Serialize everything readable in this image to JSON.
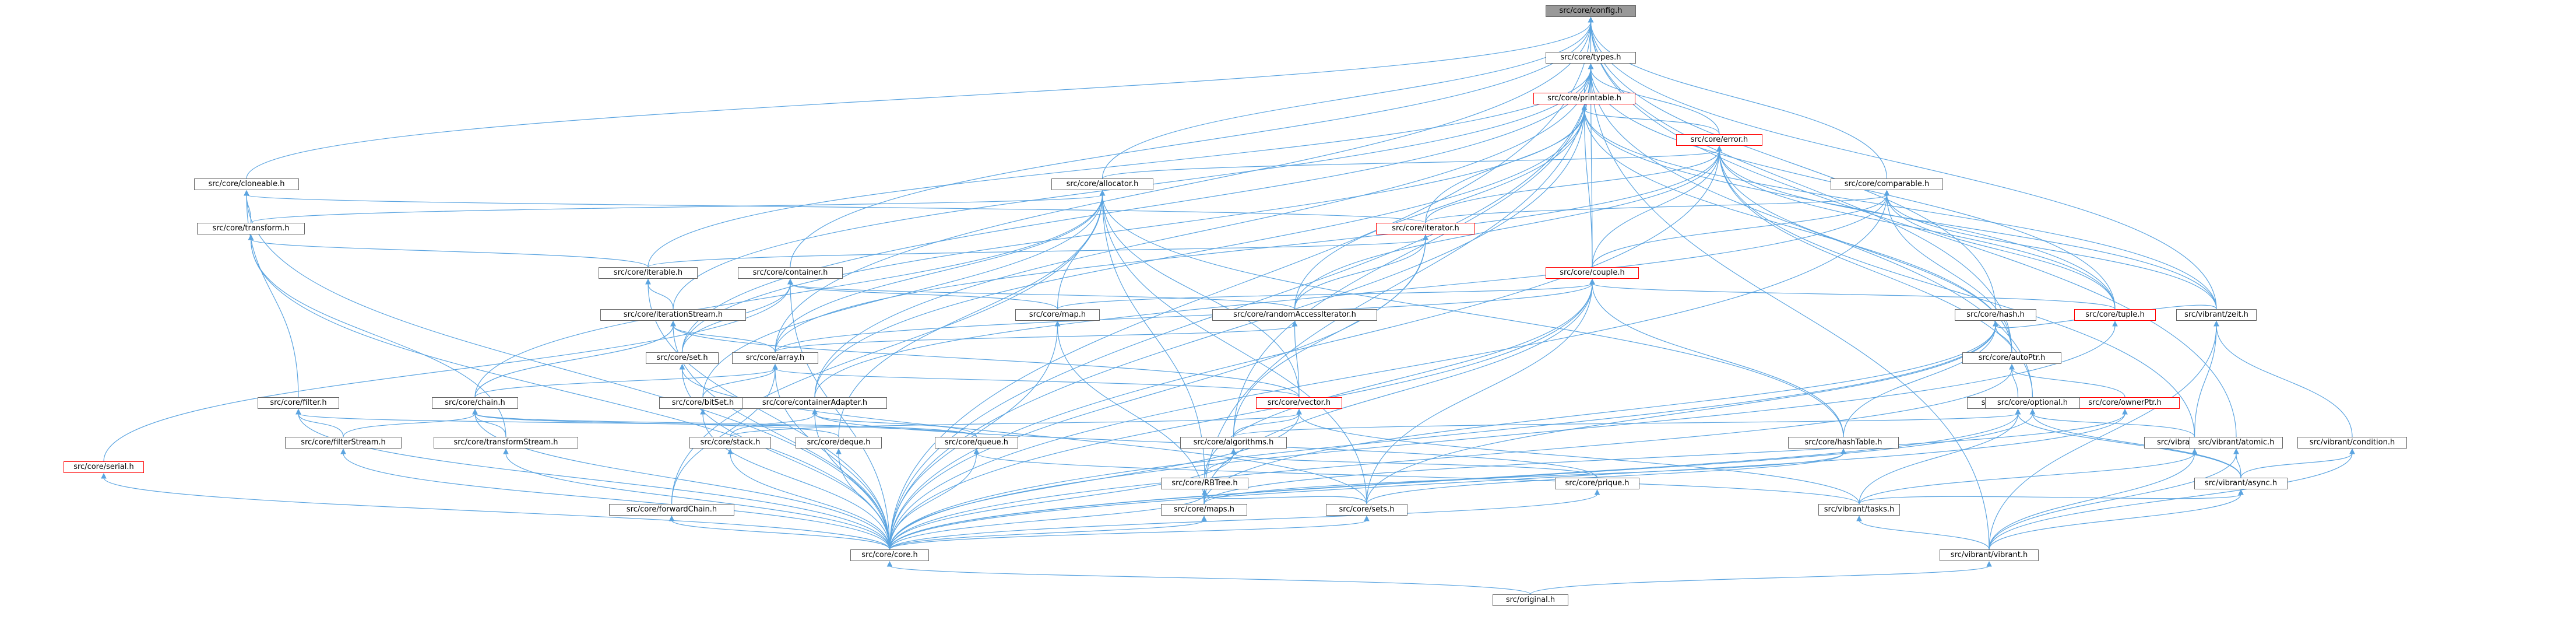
{
  "nodes": {
    "config": "src/core/config.h",
    "types": "src/core/types.h",
    "printable": "src/core/printable.h",
    "error": "src/core/error.h",
    "cloneable": "src/core/cloneable.h",
    "allocator": "src/core/allocator.h",
    "comparable": "src/core/comparable.h",
    "transform": "src/core/transform.h",
    "iterator": "src/core/iterator.h",
    "iterable": "src/core/iterable.h",
    "container": "src/core/container.h",
    "couple": "src/core/couple.h",
    "map": "src/core/map.h",
    "randomAccessIterator": "src/core/randomAccessIterator.h",
    "hash": "src/core/hash.h",
    "tuple": "src/core/tuple.h",
    "zeit": "src/vibrant/zeit.h",
    "iterationStream": "src/core/iterationStream.h",
    "set": "src/core/set.h",
    "array": "src/core/array.h",
    "autoPtr": "src/core/autoPtr.h",
    "filter": "src/core/filter.h",
    "chain": "src/core/chain.h",
    "bitSet": "src/core/bitSet.h",
    "containerAdapter": "src/core/containerAdapter.h",
    "vector": "src/core/vector.h",
    "refCntPtr": "src/core/refCntPtr.h",
    "ownerPtr": "src/core/ownerPtr.h",
    "optional": "src/core/optional.h",
    "serial": "src/core/serial.h",
    "filterStream": "src/core/filterStream.h",
    "transformStream": "src/core/transformStream.h",
    "stack": "src/core/stack.h",
    "deque": "src/core/deque.h",
    "queue": "src/core/queue.h",
    "algorithms": "src/core/algorithms.h",
    "hashTable": "src/core/hashTable.h",
    "thread": "src/vibrant/thread.h",
    "atomic": "src/vibrant/atomic.h",
    "condition": "src/vibrant/condition.h",
    "RBTree": "src/core/RBTree.h",
    "prique": "src/core/prique.h",
    "async": "src/vibrant/async.h",
    "forwardChain": "src/core/forwardChain.h",
    "maps": "src/core/maps.h",
    "sets": "src/core/sets.h",
    "tasks": "src/vibrant/tasks.h",
    "core": "src/core/core.h",
    "vibrant": "src/vibrant/vibrant.h",
    "original": "src/original.h"
  },
  "highlighted_nodes": [
    "printable",
    "error",
    "iterator",
    "couple",
    "tuple",
    "vector",
    "ownerPtr",
    "serial"
  ],
  "root_node": "config",
  "edges": [
    [
      "config",
      "types"
    ],
    [
      "config",
      "cloneable"
    ],
    [
      "config",
      "allocator"
    ],
    [
      "config",
      "comparable"
    ],
    [
      "config",
      "container"
    ],
    [
      "config",
      "hash"
    ],
    [
      "config",
      "array"
    ],
    [
      "config",
      "autoPtr"
    ],
    [
      "config",
      "zeit"
    ],
    [
      "config",
      "atomic"
    ],
    [
      "config",
      "core"
    ],
    [
      "types",
      "printable"
    ],
    [
      "types",
      "error"
    ],
    [
      "types",
      "iterationStream"
    ],
    [
      "types",
      "couple"
    ],
    [
      "types",
      "iterable"
    ],
    [
      "types",
      "containerAdapter"
    ],
    [
      "types",
      "algorithms"
    ],
    [
      "types",
      "optional"
    ],
    [
      "types",
      "tuple"
    ],
    [
      "types",
      "vibrant"
    ],
    [
      "types",
      "core"
    ],
    [
      "types",
      "set"
    ],
    [
      "types",
      "maps"
    ],
    [
      "printable",
      "error"
    ],
    [
      "printable",
      "iterator"
    ],
    [
      "printable",
      "couple"
    ],
    [
      "printable",
      "randomAccessIterator"
    ],
    [
      "printable",
      "containerAdapter"
    ],
    [
      "printable",
      "autoPtr"
    ],
    [
      "printable",
      "tuple"
    ],
    [
      "printable",
      "zeit"
    ],
    [
      "printable",
      "core"
    ],
    [
      "printable",
      "set"
    ],
    [
      "error",
      "allocator"
    ],
    [
      "error",
      "iterator"
    ],
    [
      "error",
      "couple"
    ],
    [
      "error",
      "randomAccessIterator"
    ],
    [
      "error",
      "zeit"
    ],
    [
      "error",
      "optional"
    ],
    [
      "error",
      "thread"
    ],
    [
      "error",
      "autoPtr"
    ],
    [
      "error",
      "tuple"
    ],
    [
      "error",
      "core"
    ],
    [
      "error",
      "array"
    ],
    [
      "cloneable",
      "transform"
    ],
    [
      "cloneable",
      "filter"
    ],
    [
      "cloneable",
      "iterator"
    ],
    [
      "cloneable",
      "core"
    ],
    [
      "allocator",
      "transform"
    ],
    [
      "allocator",
      "array"
    ],
    [
      "allocator",
      "chain"
    ],
    [
      "allocator",
      "map"
    ],
    [
      "allocator",
      "vector"
    ],
    [
      "allocator",
      "hashTable"
    ],
    [
      "allocator",
      "RBTree"
    ],
    [
      "allocator",
      "deque"
    ],
    [
      "allocator",
      "forwardChain"
    ],
    [
      "allocator",
      "bitSet"
    ],
    [
      "allocator",
      "sets"
    ],
    [
      "comparable",
      "iterator"
    ],
    [
      "comparable",
      "couple"
    ],
    [
      "comparable",
      "autoPtr"
    ],
    [
      "comparable",
      "tuple"
    ],
    [
      "comparable",
      "zeit"
    ],
    [
      "comparable",
      "containerAdapter"
    ],
    [
      "comparable",
      "core"
    ],
    [
      "transform",
      "iterable"
    ],
    [
      "transform",
      "transformStream"
    ],
    [
      "transform",
      "core"
    ],
    [
      "iterator",
      "iterable"
    ],
    [
      "iterator",
      "randomAccessIterator"
    ],
    [
      "iterator",
      "algorithms"
    ],
    [
      "iterator",
      "core"
    ],
    [
      "iterable",
      "iterationStream"
    ],
    [
      "iterable",
      "core"
    ],
    [
      "container",
      "map"
    ],
    [
      "container",
      "randomAccessIterator"
    ],
    [
      "container",
      "serial"
    ],
    [
      "container",
      "set"
    ],
    [
      "container",
      "core"
    ],
    [
      "couple",
      "map"
    ],
    [
      "couple",
      "hashTable"
    ],
    [
      "couple",
      "RBTree"
    ],
    [
      "couple",
      "sets"
    ],
    [
      "couple",
      "maps"
    ],
    [
      "couple",
      "core"
    ],
    [
      "couple",
      "array"
    ],
    [
      "couple",
      "tuple"
    ],
    [
      "map",
      "maps"
    ],
    [
      "map",
      "core"
    ],
    [
      "randomAccessIterator",
      "array"
    ],
    [
      "randomAccessIterator",
      "vector"
    ],
    [
      "hash",
      "hashTable"
    ],
    [
      "hash",
      "autoPtr"
    ],
    [
      "hash",
      "zeit"
    ],
    [
      "hash",
      "maps"
    ],
    [
      "hash",
      "sets"
    ],
    [
      "hash",
      "core"
    ],
    [
      "tuple",
      "core"
    ],
    [
      "zeit",
      "thread"
    ],
    [
      "zeit",
      "condition"
    ],
    [
      "zeit",
      "vibrant"
    ],
    [
      "iterationStream",
      "chain"
    ],
    [
      "iterationStream",
      "array"
    ],
    [
      "iterationStream",
      "vector"
    ],
    [
      "iterationStream",
      "core"
    ],
    [
      "set",
      "sets"
    ],
    [
      "set",
      "core"
    ],
    [
      "array",
      "chain"
    ],
    [
      "array",
      "bitSet"
    ],
    [
      "array",
      "vector"
    ],
    [
      "array",
      "forwardChain"
    ],
    [
      "array",
      "core"
    ],
    [
      "autoPtr",
      "refCntPtr"
    ],
    [
      "autoPtr",
      "ownerPtr"
    ],
    [
      "autoPtr",
      "core"
    ],
    [
      "filter",
      "filterStream"
    ],
    [
      "filter",
      "queue"
    ],
    [
      "filter",
      "core"
    ],
    [
      "chain",
      "filterStream"
    ],
    [
      "chain",
      "transformStream"
    ],
    [
      "chain",
      "deque"
    ],
    [
      "chain",
      "queue"
    ],
    [
      "chain",
      "core"
    ],
    [
      "bitSet",
      "core"
    ],
    [
      "containerAdapter",
      "stack"
    ],
    [
      "containerAdapter",
      "queue"
    ],
    [
      "containerAdapter",
      "prique"
    ],
    [
      "containerAdapter",
      "core"
    ],
    [
      "vector",
      "stack"
    ],
    [
      "vector",
      "algorithms"
    ],
    [
      "vector",
      "tasks"
    ],
    [
      "vector",
      "core"
    ],
    [
      "refCntPtr",
      "algorithms"
    ],
    [
      "refCntPtr",
      "async"
    ],
    [
      "refCntPtr",
      "tasks"
    ],
    [
      "refCntPtr",
      "core"
    ],
    [
      "ownerPtr",
      "maps"
    ],
    [
      "ownerPtr",
      "core"
    ],
    [
      "optional",
      "thread"
    ],
    [
      "optional",
      "async"
    ],
    [
      "optional",
      "core"
    ],
    [
      "serial",
      "core"
    ],
    [
      "filterStream",
      "core"
    ],
    [
      "transformStream",
      "core"
    ],
    [
      "stack",
      "core"
    ],
    [
      "deque",
      "core"
    ],
    [
      "queue",
      "tasks"
    ],
    [
      "queue",
      "core"
    ],
    [
      "algorithms",
      "RBTree"
    ],
    [
      "algorithms",
      "prique"
    ],
    [
      "algorithms",
      "core"
    ],
    [
      "hashTable",
      "maps"
    ],
    [
      "hashTable",
      "sets"
    ],
    [
      "thread",
      "tasks"
    ],
    [
      "thread",
      "vibrant"
    ],
    [
      "atomic",
      "async"
    ],
    [
      "atomic",
      "vibrant"
    ],
    [
      "condition",
      "async"
    ],
    [
      "condition",
      "vibrant"
    ],
    [
      "RBTree",
      "maps"
    ],
    [
      "RBTree",
      "sets"
    ],
    [
      "RBTree",
      "core"
    ],
    [
      "prique",
      "core"
    ],
    [
      "async",
      "tasks"
    ],
    [
      "async",
      "vibrant"
    ],
    [
      "forwardChain",
      "core"
    ],
    [
      "maps",
      "core"
    ],
    [
      "sets",
      "core"
    ],
    [
      "tasks",
      "vibrant"
    ],
    [
      "core",
      "original"
    ],
    [
      "vibrant",
      "original"
    ]
  ],
  "colors": {
    "edge": "#5ba4e0",
    "node_border": "#666666",
    "highlight_border": "#ff0000",
    "root_fill": "#999999",
    "background": "#ffffff"
  }
}
